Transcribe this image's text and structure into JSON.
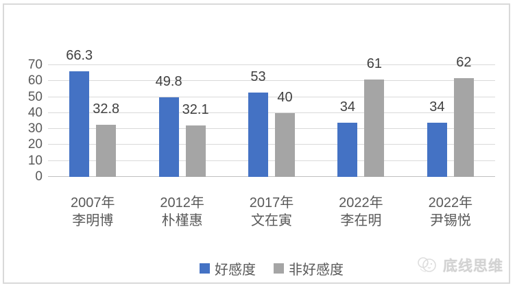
{
  "watermark": {
    "text": "底线思维",
    "icon": "brand-logo-icon"
  },
  "chart_data": {
    "type": "bar",
    "title": "",
    "xlabel": "",
    "ylabel": "",
    "categories": [
      {
        "year": "2007年",
        "name": "李明博"
      },
      {
        "year": "2012年",
        "name": "朴槿惠"
      },
      {
        "year": "2017年",
        "name": "文在寅"
      },
      {
        "year": "2022年",
        "name": "李在明"
      },
      {
        "year": "2022年",
        "name": "尹锡悦"
      }
    ],
    "series": [
      {
        "name": "好感度",
        "color": "#4472C4",
        "values": [
          66.3,
          49.8,
          53,
          34,
          34
        ]
      },
      {
        "name": "非好感度",
        "color": "#A5A5A5",
        "values": [
          32.8,
          32.1,
          40,
          61,
          62
        ]
      }
    ],
    "ylim": [
      0,
      70
    ],
    "ytick_step": 10,
    "yticks": [
      "0",
      "10",
      "20",
      "30",
      "40",
      "50",
      "60",
      "70"
    ],
    "grid": true,
    "legend_position": "bottom",
    "colors": {
      "gridline": "#d9d9d9",
      "axis_line": "#bfbfbf",
      "axis_text": "#595959",
      "value_label_text": "#404040",
      "watermark_text": "#d2d2d2"
    }
  }
}
